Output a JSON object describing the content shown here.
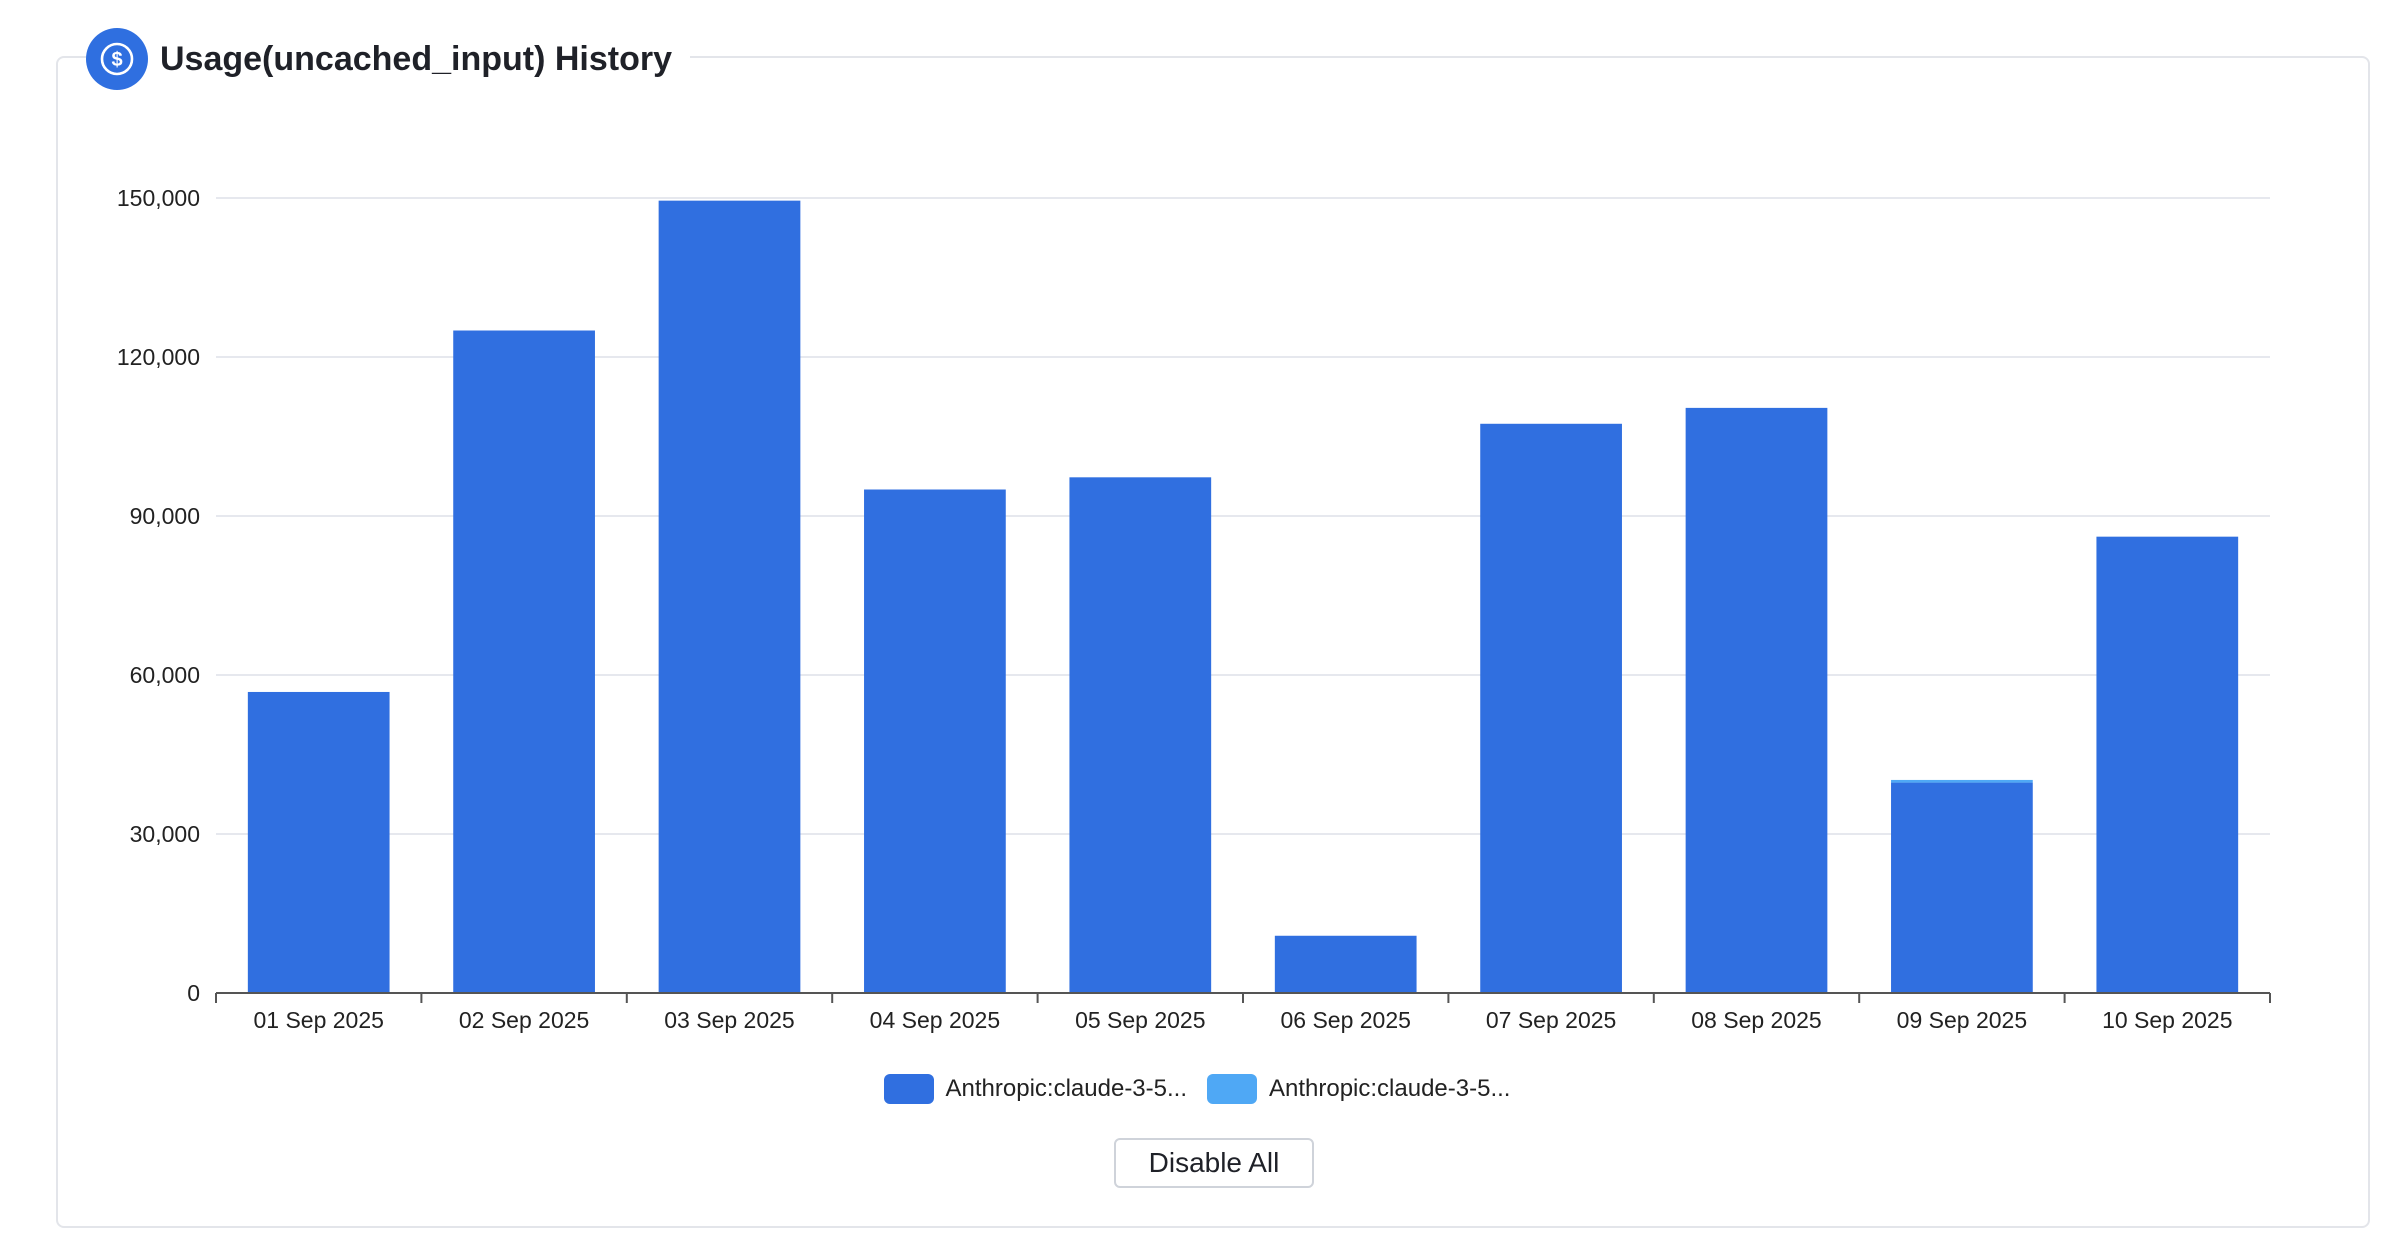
{
  "header": {
    "title": "Usage(uncached_input) History",
    "icon": "dollar-circle-icon"
  },
  "colors": {
    "series_1": "#306fe0",
    "series_2": "#4fa8f5",
    "grid": "#e6e8ee",
    "axis": "#555555"
  },
  "chart_data": {
    "type": "bar",
    "stacked": true,
    "title": "",
    "xlabel": "",
    "ylabel": "",
    "ylim": [
      0,
      150000
    ],
    "yticks": [
      0,
      30000,
      60000,
      90000,
      120000,
      150000
    ],
    "ytick_labels": [
      "0",
      "30,000",
      "60,000",
      "90,000",
      "120,000",
      "150,000"
    ],
    "grid": true,
    "legend_position": "bottom",
    "categories": [
      "01 Sep 2025",
      "02 Sep 2025",
      "03 Sep 2025",
      "04 Sep 2025",
      "05 Sep 2025",
      "06 Sep 2025",
      "07 Sep 2025",
      "08 Sep 2025",
      "09 Sep 2025",
      "10 Sep 2025"
    ],
    "series": [
      {
        "name": "Anthropic:claude-3-5...",
        "values": [
          56800,
          125000,
          149500,
          95000,
          97300,
          10800,
          107400,
          110400,
          39700,
          86100
        ]
      },
      {
        "name": "Anthropic:claude-3-5...",
        "values": [
          0,
          0,
          0,
          0,
          0,
          0,
          0,
          0,
          500,
          0
        ]
      }
    ]
  },
  "controls": {
    "disable_all_label": "Disable All"
  }
}
